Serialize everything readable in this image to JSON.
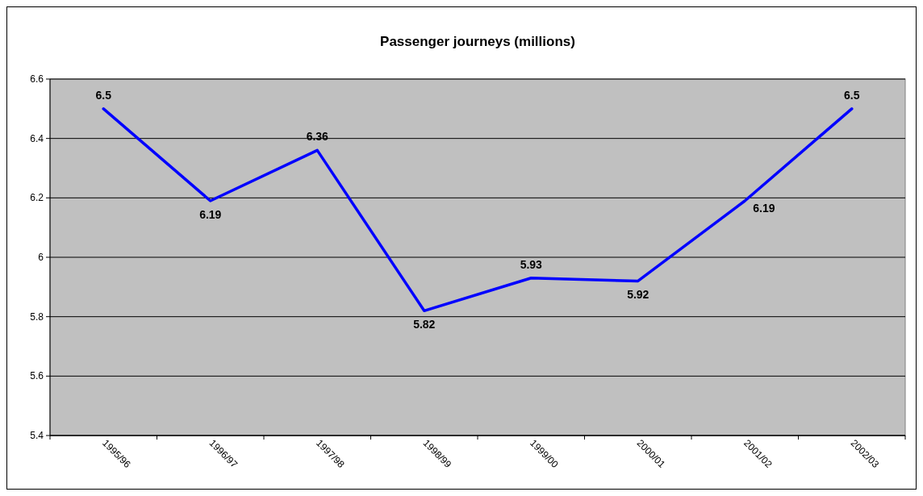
{
  "chart_data": {
    "type": "line",
    "title": "Passenger journeys (millions)",
    "categories": [
      "1995/96",
      "1996/97",
      "1997/98",
      "1998/99",
      "1999/00",
      "2000/01",
      "2001/02",
      "2002/03"
    ],
    "series": [
      {
        "color": "#0000ff",
        "values": [
          6.5,
          6.19,
          6.36,
          5.82,
          5.93,
          5.92,
          6.19,
          6.5
        ]
      }
    ],
    "ylim": [
      5.4,
      6.6
    ],
    "yticks": [
      5.4,
      5.6,
      5.8,
      6,
      6.2,
      6.4,
      6.6
    ],
    "grid": "y",
    "data_labels": true,
    "marker": "none",
    "line_style": "solid"
  }
}
